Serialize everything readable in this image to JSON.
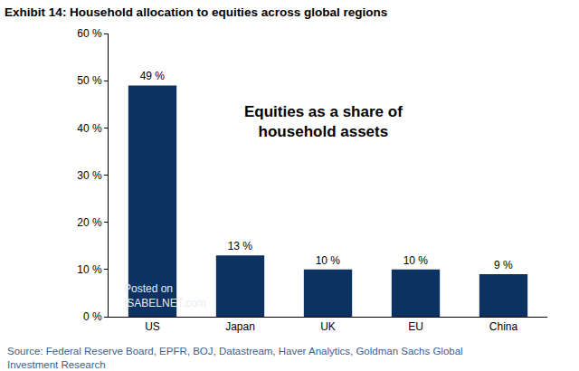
{
  "chart_data": {
    "type": "bar",
    "title": "Exhibit 14: Household allocation to equities across global regions",
    "categories": [
      "US",
      "Japan",
      "UK",
      "EU",
      "China"
    ],
    "values": [
      49,
      13,
      10,
      10,
      9
    ],
    "value_labels": [
      "49 %",
      "13 %",
      "10 %",
      "10 %",
      "9 %"
    ],
    "color": "#0c3262",
    "ylim": [
      0,
      60
    ],
    "yticks": [
      {
        "value": 0,
        "label": "0 %"
      },
      {
        "value": 10,
        "label": "10 %"
      },
      {
        "value": 20,
        "label": "20 %"
      },
      {
        "value": 30,
        "label": "30 %"
      },
      {
        "value": 40,
        "label": "40 %"
      },
      {
        "value": 50,
        "label": "50 %"
      },
      {
        "value": 60,
        "label": "60 %"
      }
    ],
    "grid": false,
    "data_labels": true,
    "annotation": [
      "Equities as a share of",
      "household assets"
    ],
    "watermark": [
      "Posted on",
      "ISABELNET.com"
    ],
    "source": [
      "Source: Federal Reserve Board, EPFR, BOJ, Datastream, Haver Analytics, Goldman Sachs Global",
      "Investment Research"
    ]
  }
}
